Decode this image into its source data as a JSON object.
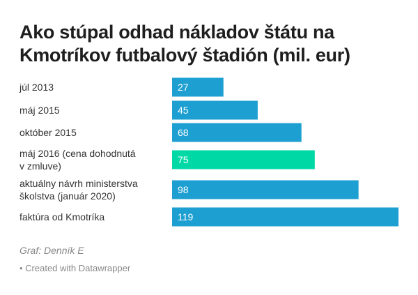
{
  "chart_data": {
    "type": "bar",
    "title": "Ako stúpal odhad nákladov štátu na Kmotríkov futbalový štadión (mil. eur)",
    "categories": [
      [
        "júl 2013"
      ],
      [
        "máj 2015"
      ],
      [
        "október 2015"
      ],
      [
        "máj 2016 (cena dohodnutá",
        "v zmluve)"
      ],
      [
        "aktuálny návrh ministerstva",
        "školstva (január 2020)"
      ],
      [
        "faktúra od Kmotríka"
      ]
    ],
    "values": [
      27,
      45,
      68,
      75,
      98,
      119
    ],
    "highlight_index": 3,
    "xlim": [
      0,
      119
    ],
    "colors": {
      "bar": "#1d9fd1",
      "highlight": "#00d9a6"
    }
  },
  "footer": {
    "source": "Graf: Denník E",
    "credit": "• Created with Datawrapper"
  }
}
